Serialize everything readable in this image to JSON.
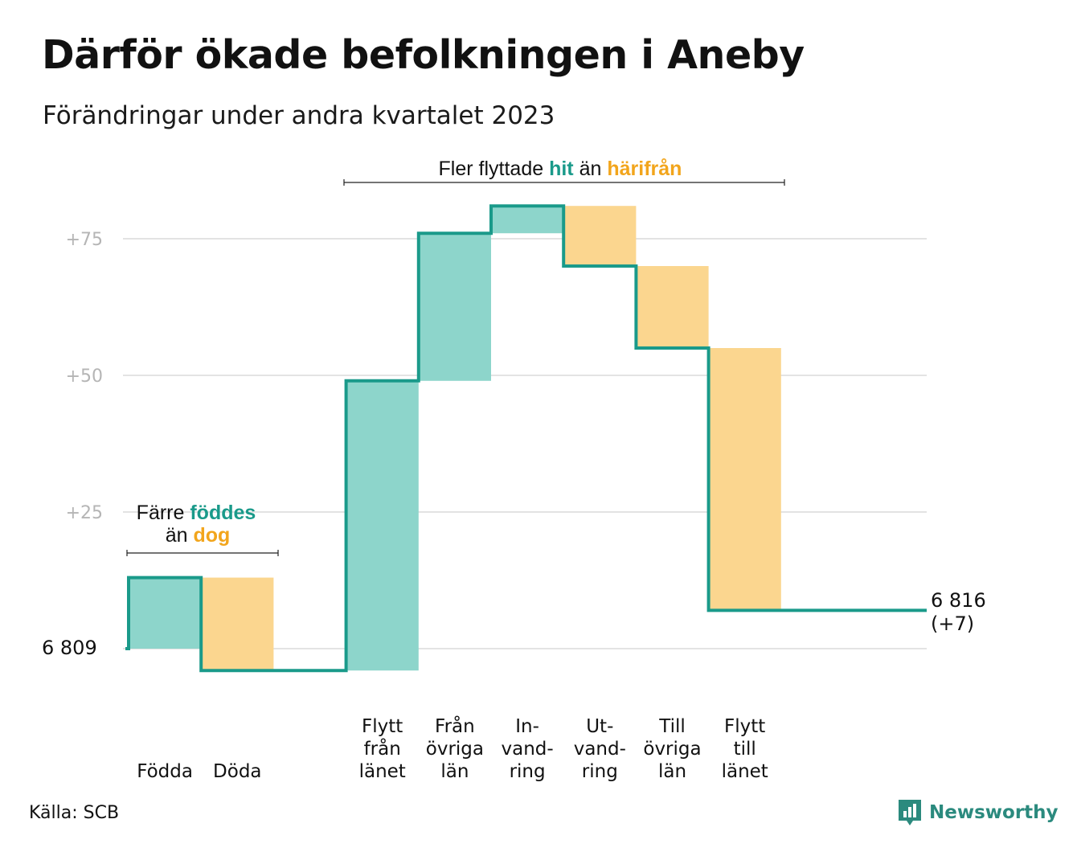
{
  "title": "Därför ökade befolkningen i Aneby",
  "subtitle": "Förändringar under andra kvartalet 2023",
  "source": "Källa: SCB",
  "brand": "Newsworthy",
  "colors": {
    "increase": "#8dd5cb",
    "decrease": "#fbd68f",
    "line": "#1a9a8a",
    "grid": "#e3e3e3",
    "accent_teal": "#1a9a8a",
    "accent_orange": "#f2a51c"
  },
  "annotations": {
    "births_deaths": {
      "line1_prefix": "Färre",
      "line1_hl": "föddes",
      "line2_prefix": "än",
      "line2_hl": "dog"
    },
    "migration": {
      "prefix": "Fler flyttade",
      "hl1": "hit",
      "mid": "än",
      "hl2": "härifrån"
    }
  },
  "chart_data": {
    "type": "waterfall",
    "title": "Därför ökade befolkningen i Aneby",
    "subtitle": "Förändringar under andra kvartalet 2023",
    "start_value": 6809,
    "start_label": "6  809",
    "end_value": 6816,
    "end_label": "6 816",
    "end_change_label": "(+7)",
    "y_ticks": [
      25,
      50,
      75
    ],
    "y_tick_labels": [
      "+25",
      "+50",
      "+75"
    ],
    "categories": [
      {
        "label_lines": [
          "Födda"
        ],
        "change": 13
      },
      {
        "label_lines": [
          "Döda"
        ],
        "change": -17
      },
      {
        "label_lines": [],
        "change": 0
      },
      {
        "label_lines": [
          "Flytt",
          "från",
          "länet"
        ],
        "change": 53
      },
      {
        "label_lines": [
          "Från",
          "övriga",
          "län"
        ],
        "change": 27
      },
      {
        "label_lines": [
          "In-",
          "vand-",
          "ring"
        ],
        "change": 5
      },
      {
        "label_lines": [
          "Ut-",
          "vand-",
          "ring"
        ],
        "change": -11
      },
      {
        "label_lines": [
          "Till",
          "övriga",
          "län"
        ],
        "change": -15
      },
      {
        "label_lines": [
          "Flytt",
          "till",
          "länet"
        ],
        "change": -48
      }
    ]
  }
}
